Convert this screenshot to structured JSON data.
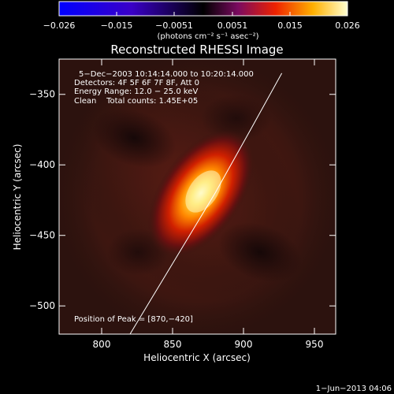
{
  "colorbar": {
    "ticks": [
      "−0.026",
      "−0.015",
      "−0.0051",
      "0.0051",
      "0.015",
      "0.026"
    ],
    "range": [
      -0.026,
      0.026
    ],
    "units": "(photons cm⁻² s⁻¹ asec⁻²)"
  },
  "chart_data": {
    "type": "heatmap",
    "title": "Reconstructed RHESSI Image",
    "xlabel": "Heliocentric X (arcsec)",
    "ylabel": "Heliocentric Y (arcsec)",
    "xlim": [
      770,
      965
    ],
    "ylim": [
      -520,
      -325
    ],
    "x_ticks": [
      800,
      850,
      900,
      950
    ],
    "y_ticks": [
      -350,
      -400,
      -450,
      -500
    ],
    "x_tick_labels": [
      "800",
      "850",
      "900",
      "950"
    ],
    "y_tick_labels": [
      "−350",
      "−400",
      "−450",
      "−500"
    ],
    "annotations": [
      "5−Dec−2003 10:14:14.000 to 10:20:14.000",
      "Detectors: 4F 5F 6F 7F 8F, Att 0",
      "Energy Range: 12.0 − 25.0 keV",
      "Clean    Total counts: 1.45E+05"
    ],
    "peak_label": "Position of Peak = [870,−420]",
    "peak": [
      870,
      -420
    ],
    "limb_curve": [
      [
        820,
        -520
      ],
      [
        850,
        -470
      ],
      [
        880,
        -420
      ],
      [
        905,
        -375
      ],
      [
        927,
        -335
      ]
    ],
    "colormap": "hot"
  },
  "timestamp": "1−Jun−2013 04:06"
}
